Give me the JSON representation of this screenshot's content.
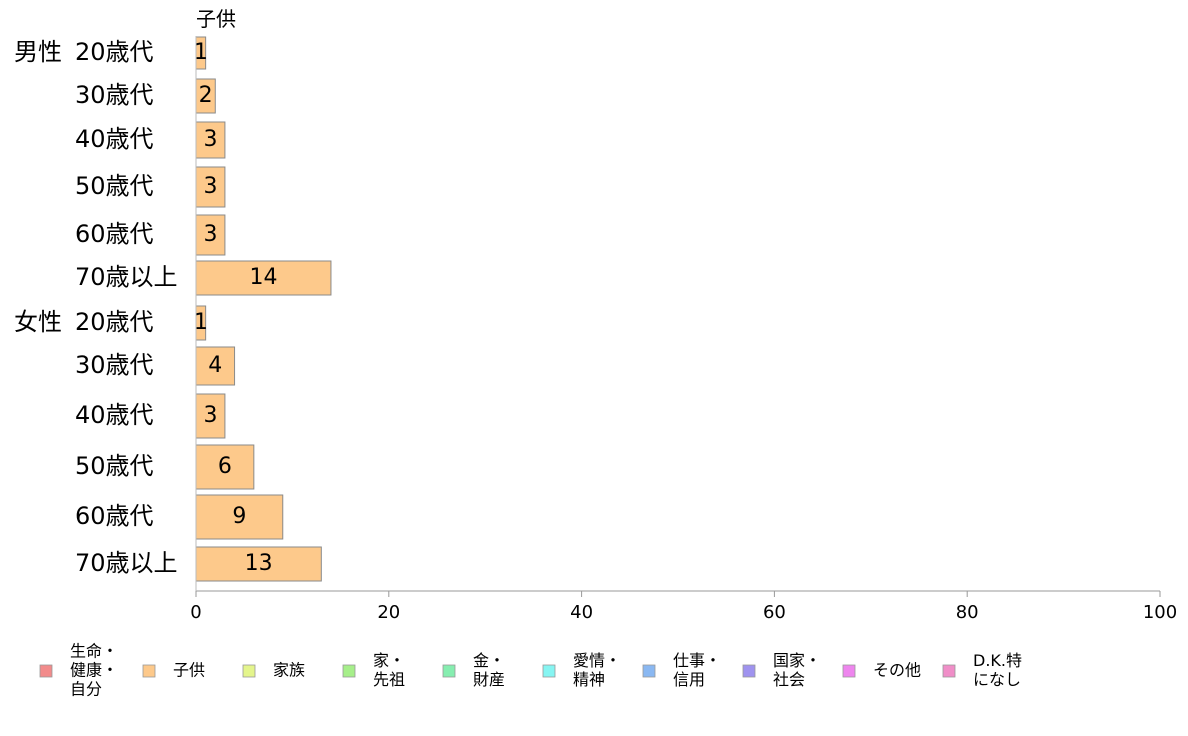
{
  "chart_data": {
    "type": "bar",
    "orientation": "horizontal",
    "stacked": true,
    "xlim": [
      0,
      100
    ],
    "xticks": [
      0,
      20,
      40,
      60,
      80,
      100
    ],
    "groups": [
      {
        "label": "男性",
        "rows": [
          {
            "label": "20歳代",
            "value": 1
          },
          {
            "label": "30歳代",
            "value": 2
          },
          {
            "label": "40歳代",
            "value": 3
          },
          {
            "label": "50歳代",
            "value": 3
          },
          {
            "label": "60歳代",
            "value": 3
          },
          {
            "label": "70歳以上",
            "value": 14
          }
        ]
      },
      {
        "label": "女性",
        "rows": [
          {
            "label": "20歳代",
            "value": 1
          },
          {
            "label": "30歳代",
            "value": 4
          },
          {
            "label": "40歳代",
            "value": 3
          },
          {
            "label": "50歳代",
            "value": 6
          },
          {
            "label": "60歳代",
            "value": 9
          },
          {
            "label": "70歳以上",
            "value": 13
          }
        ]
      }
    ],
    "series_shown": "子供",
    "series_color": "#fdc98b",
    "legend": {
      "placement": "bottom",
      "items": [
        {
          "name": "生命・健康・自分",
          "lines": [
            "生命・",
            "健康・",
            "自分"
          ],
          "color": "#f28b8b"
        },
        {
          "name": "子供",
          "lines": [
            "子供"
          ],
          "color": "#fdc98b"
        },
        {
          "name": "家族",
          "lines": [
            "家族"
          ],
          "color": "#e4f58c"
        },
        {
          "name": "家・先祖",
          "lines": [
            "家・",
            "先祖"
          ],
          "color": "#a6ef8a"
        },
        {
          "name": "金・財産",
          "lines": [
            "金・",
            "財産"
          ],
          "color": "#86eeb0"
        },
        {
          "name": "愛情・精神",
          "lines": [
            "愛情・",
            "精神"
          ],
          "color": "#86f5f2"
        },
        {
          "name": "仕事・信用",
          "lines": [
            "仕事・",
            "信用"
          ],
          "color": "#8ab8f2"
        },
        {
          "name": "国家・社会",
          "lines": [
            "国家・",
            "社会"
          ],
          "color": "#9f93ef"
        },
        {
          "name": "その他",
          "lines": [
            "その他"
          ],
          "color": "#ee85ee"
        },
        {
          "name": "D.K.特になし",
          "lines": [
            "D.K.特",
            "になし"
          ],
          "color": "#f08ec8"
        }
      ]
    }
  }
}
